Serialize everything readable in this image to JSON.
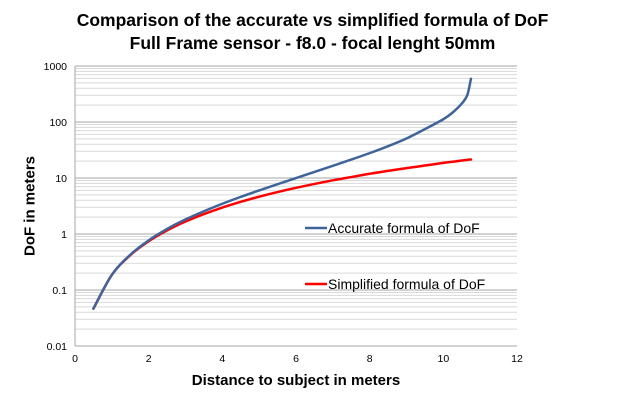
{
  "chart_data": {
    "type": "line",
    "title": "Comparison of the accurate vs simplified formula of DoF",
    "subtitle": "Full Frame sensor - f8.0 - focal lenght 50mm",
    "xlabel": "Distance to subject in meters",
    "ylabel": "DoF in meters",
    "xlim": [
      0,
      12
    ],
    "ylim": [
      0.01,
      1000
    ],
    "yscale": "log",
    "x_ticks": [
      "0",
      "2",
      "4",
      "6",
      "8",
      "10",
      "12"
    ],
    "y_ticks": [
      "0.01",
      "0.1",
      "1",
      "10",
      "100",
      "1000"
    ],
    "grid": {
      "major": true,
      "minor": true,
      "axis": "y"
    },
    "legend_position": "inside-right",
    "x": [
      0.5,
      1,
      1.5,
      2,
      2.5,
      3,
      3.5,
      4,
      4.5,
      5,
      5.5,
      6,
      6.5,
      7,
      7.5,
      8,
      8.5,
      9,
      9.5,
      10,
      10.25,
      10.5,
      10.65,
      10.75
    ],
    "series": [
      {
        "name": "Accurate formula of DoF",
        "color": "#3f6499",
        "values": [
          0.0465,
          0.187,
          0.426,
          0.77,
          1.23,
          1.82,
          2.55,
          3.47,
          4.6,
          6.0,
          7.77,
          9.98,
          12.8,
          16.5,
          21.3,
          27.8,
          37.0,
          50.8,
          74.6,
          112,
          147,
          213,
          302,
          592
        ]
      },
      {
        "name": "Simplified formula of DoF",
        "color": "#ff0000",
        "values": [
          0.0464,
          0.186,
          0.418,
          0.742,
          1.16,
          1.67,
          2.27,
          2.97,
          3.76,
          4.64,
          5.61,
          6.68,
          7.84,
          9.09,
          10.4,
          11.9,
          13.4,
          15.0,
          16.7,
          18.6,
          19.5,
          20.5,
          21.1,
          21.4
        ]
      }
    ]
  },
  "legend": {
    "items": [
      {
        "label": "Accurate formula of DoF",
        "color": "#3f6499"
      },
      {
        "label": "Simplified formula of DoF",
        "color": "#ff0000"
      }
    ]
  }
}
